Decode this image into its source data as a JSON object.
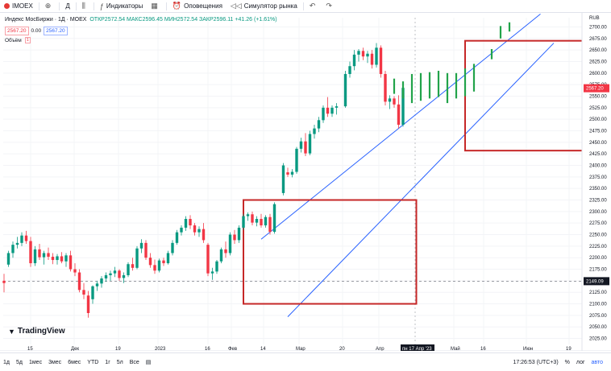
{
  "toolbar": {
    "symbol": "IMOEX",
    "add_icon": "plus-circle-icon",
    "interval": "Д",
    "chart_type_icon": "candles-icon",
    "indicators_label": "Индикаторы",
    "alerts_label": "Оповещения",
    "replay_label": "Симулятор рынка",
    "undo_icon": "undo-icon",
    "redo_icon": "redo-icon"
  },
  "legend": {
    "title": "Индекс МосБиржи · 1Д · MOEX",
    "ohlc_text": "ОТКР2572.54 МАКС2596.45 МИН2572.54 ЗАКР2596.11 +41.26 (+1.61%)",
    "bid": "2567.20",
    "spread": "0.00",
    "ask": "2567.20",
    "volume_label": "Объём",
    "volume_badge": "1"
  },
  "currency": "RUB",
  "price_ticks": [
    "2700.00",
    "2675.00",
    "2650.00",
    "2625.00",
    "2600.00",
    "2575.00",
    "2550.00",
    "2525.00",
    "2500.00",
    "2475.00",
    "2450.00",
    "2425.00",
    "2400.00",
    "2375.00",
    "2350.00",
    "2325.00",
    "2300.00",
    "2275.00",
    "2250.00",
    "2225.00",
    "2200.00",
    "2175.00",
    "2150.00",
    "2125.00",
    "2100.00",
    "2075.00",
    "2050.00",
    "2025.00"
  ],
  "last_price_tag": "2567.20",
  "hline_tag": "2149.09",
  "time_ticks": [
    "15",
    "Дек",
    "19",
    "2023",
    "16",
    "Фев",
    "14",
    "Мар",
    "20",
    "Апр",
    "пн 17 Апр '23",
    "Май",
    "16",
    "Июн",
    "19"
  ],
  "tv_logo": "TradingView",
  "bottom": {
    "ranges": [
      "1д",
      "5д",
      "1мес",
      "3мес",
      "6мес",
      "YTD",
      "1г",
      "5л",
      "Все"
    ],
    "time": "17:26:53 (UTC+3)",
    "percent": "%",
    "log": "лог",
    "auto": "авто"
  },
  "colors": {
    "up": "#089981",
    "down": "#f23645",
    "projection": "#22a34a",
    "channel": "#2962ff",
    "box": "#c62828"
  },
  "chart_data": {
    "type": "candlestick",
    "ylim": [
      2012,
      2720
    ],
    "candles": [
      {
        "i": 0,
        "o": 2150,
        "h": 2165,
        "l": 2125,
        "c": 2145
      },
      {
        "i": 1,
        "o": 2185,
        "h": 2215,
        "l": 2180,
        "c": 2210
      },
      {
        "i": 2,
        "o": 2210,
        "h": 2235,
        "l": 2200,
        "c": 2228
      },
      {
        "i": 3,
        "o": 2228,
        "h": 2245,
        "l": 2220,
        "c": 2232
      },
      {
        "i": 4,
        "o": 2232,
        "h": 2255,
        "l": 2225,
        "c": 2248
      },
      {
        "i": 5,
        "o": 2248,
        "h": 2258,
        "l": 2230,
        "c": 2236
      },
      {
        "i": 6,
        "o": 2236,
        "h": 2245,
        "l": 2180,
        "c": 2188
      },
      {
        "i": 7,
        "o": 2188,
        "h": 2225,
        "l": 2182,
        "c": 2218
      },
      {
        "i": 8,
        "o": 2218,
        "h": 2230,
        "l": 2195,
        "c": 2201
      },
      {
        "i": 9,
        "o": 2201,
        "h": 2215,
        "l": 2185,
        "c": 2210
      },
      {
        "i": 10,
        "o": 2210,
        "h": 2222,
        "l": 2195,
        "c": 2202
      },
      {
        "i": 11,
        "o": 2202,
        "h": 2210,
        "l": 2186,
        "c": 2195
      },
      {
        "i": 12,
        "o": 2195,
        "h": 2208,
        "l": 2185,
        "c": 2203
      },
      {
        "i": 13,
        "o": 2203,
        "h": 2212,
        "l": 2188,
        "c": 2192
      },
      {
        "i": 14,
        "o": 2192,
        "h": 2210,
        "l": 2180,
        "c": 2205
      },
      {
        "i": 15,
        "o": 2205,
        "h": 2215,
        "l": 2170,
        "c": 2175
      },
      {
        "i": 16,
        "o": 2175,
        "h": 2188,
        "l": 2160,
        "c": 2168
      },
      {
        "i": 17,
        "o": 2168,
        "h": 2175,
        "l": 2125,
        "c": 2130
      },
      {
        "i": 18,
        "o": 2130,
        "h": 2145,
        "l": 2110,
        "c": 2120
      },
      {
        "i": 19,
        "o": 2118,
        "h": 2128,
        "l": 2070,
        "c": 2080
      },
      {
        "i": 20,
        "o": 2110,
        "h": 2140,
        "l": 2100,
        "c": 2138
      },
      {
        "i": 21,
        "o": 2138,
        "h": 2150,
        "l": 2128,
        "c": 2144
      },
      {
        "i": 22,
        "o": 2144,
        "h": 2160,
        "l": 2135,
        "c": 2155
      },
      {
        "i": 23,
        "o": 2155,
        "h": 2168,
        "l": 2148,
        "c": 2162
      },
      {
        "i": 24,
        "o": 2162,
        "h": 2172,
        "l": 2150,
        "c": 2166
      },
      {
        "i": 25,
        "o": 2166,
        "h": 2180,
        "l": 2158,
        "c": 2172
      },
      {
        "i": 26,
        "o": 2172,
        "h": 2175,
        "l": 2150,
        "c": 2156
      },
      {
        "i": 27,
        "o": 2156,
        "h": 2168,
        "l": 2145,
        "c": 2162
      },
      {
        "i": 28,
        "o": 2162,
        "h": 2190,
        "l": 2158,
        "c": 2186
      },
      {
        "i": 29,
        "o": 2186,
        "h": 2200,
        "l": 2172,
        "c": 2178
      },
      {
        "i": 30,
        "o": 2178,
        "h": 2225,
        "l": 2175,
        "c": 2220
      },
      {
        "i": 31,
        "o": 2220,
        "h": 2240,
        "l": 2210,
        "c": 2232
      },
      {
        "i": 32,
        "o": 2232,
        "h": 2238,
        "l": 2195,
        "c": 2200
      },
      {
        "i": 33,
        "o": 2200,
        "h": 2210,
        "l": 2178,
        "c": 2184
      },
      {
        "i": 34,
        "o": 2184,
        "h": 2196,
        "l": 2165,
        "c": 2172
      },
      {
        "i": 35,
        "o": 2172,
        "h": 2198,
        "l": 2168,
        "c": 2194
      },
      {
        "i": 36,
        "o": 2194,
        "h": 2200,
        "l": 2182,
        "c": 2188
      },
      {
        "i": 37,
        "o": 2188,
        "h": 2215,
        "l": 2185,
        "c": 2210
      },
      {
        "i": 38,
        "o": 2210,
        "h": 2238,
        "l": 2205,
        "c": 2232
      },
      {
        "i": 39,
        "o": 2232,
        "h": 2260,
        "l": 2228,
        "c": 2255
      },
      {
        "i": 40,
        "o": 2255,
        "h": 2270,
        "l": 2248,
        "c": 2265
      },
      {
        "i": 41,
        "o": 2265,
        "h": 2290,
        "l": 2258,
        "c": 2284
      },
      {
        "i": 42,
        "o": 2284,
        "h": 2292,
        "l": 2262,
        "c": 2270
      },
      {
        "i": 43,
        "o": 2270,
        "h": 2275,
        "l": 2248,
        "c": 2255
      },
      {
        "i": 44,
        "o": 2255,
        "h": 2268,
        "l": 2245,
        "c": 2262
      },
      {
        "i": 45,
        "o": 2262,
        "h": 2275,
        "l": 2232,
        "c": 2238
      },
      {
        "i": 46,
        "o": 2228,
        "h": 2232,
        "l": 2160,
        "c": 2166
      },
      {
        "i": 47,
        "o": 2166,
        "h": 2178,
        "l": 2152,
        "c": 2170
      },
      {
        "i": 48,
        "o": 2170,
        "h": 2195,
        "l": 2165,
        "c": 2192
      },
      {
        "i": 49,
        "o": 2192,
        "h": 2222,
        "l": 2188,
        "c": 2218
      },
      {
        "i": 50,
        "o": 2218,
        "h": 2235,
        "l": 2200,
        "c": 2210
      },
      {
        "i": 51,
        "o": 2210,
        "h": 2255,
        "l": 2205,
        "c": 2250
      },
      {
        "i": 52,
        "o": 2250,
        "h": 2260,
        "l": 2230,
        "c": 2238
      },
      {
        "i": 53,
        "o": 2238,
        "h": 2270,
        "l": 2232,
        "c": 2265
      },
      {
        "i": 54,
        "o": 2265,
        "h": 2295,
        "l": 2260,
        "c": 2290
      },
      {
        "i": 55,
        "o": 2290,
        "h": 2298,
        "l": 2280,
        "c": 2294
      },
      {
        "i": 56,
        "o": 2294,
        "h": 2300,
        "l": 2270,
        "c": 2276
      },
      {
        "i": 57,
        "o": 2276,
        "h": 2290,
        "l": 2268,
        "c": 2284
      },
      {
        "i": 58,
        "o": 2284,
        "h": 2295,
        "l": 2265,
        "c": 2270
      },
      {
        "i": 59,
        "o": 2270,
        "h": 2292,
        "l": 2265,
        "c": 2288
      },
      {
        "i": 60,
        "o": 2288,
        "h": 2295,
        "l": 2250,
        "c": 2256
      },
      {
        "i": 61,
        "o": 2256,
        "h": 2320,
        "l": 2252,
        "c": 2316
      },
      {
        "i": 62,
        "o": 2340,
        "h": 2405,
        "l": 2335,
        "c": 2400
      },
      {
        "i": 63,
        "o": 2385,
        "h": 2395,
        "l": 2375,
        "c": 2380
      },
      {
        "i": 64,
        "o": 2380,
        "h": 2392,
        "l": 2374,
        "c": 2386
      },
      {
        "i": 65,
        "o": 2386,
        "h": 2440,
        "l": 2382,
        "c": 2436
      },
      {
        "i": 66,
        "o": 2436,
        "h": 2460,
        "l": 2428,
        "c": 2452
      },
      {
        "i": 67,
        "o": 2452,
        "h": 2470,
        "l": 2420,
        "c": 2426
      },
      {
        "i": 68,
        "o": 2426,
        "h": 2475,
        "l": 2422,
        "c": 2468
      },
      {
        "i": 69,
        "o": 2468,
        "h": 2488,
        "l": 2458,
        "c": 2480
      },
      {
        "i": 70,
        "o": 2480,
        "h": 2505,
        "l": 2472,
        "c": 2498
      },
      {
        "i": 71,
        "o": 2498,
        "h": 2530,
        "l": 2492,
        "c": 2525
      },
      {
        "i": 72,
        "o": 2525,
        "h": 2548,
        "l": 2505,
        "c": 2512
      },
      {
        "i": 73,
        "o": 2512,
        "h": 2530,
        "l": 2505,
        "c": 2525
      },
      {
        "i": 74,
        "o": 2525,
        "h": 2535,
        "l": 2510,
        "c": 2528
      },
      {
        "i": 75,
        "o": 2528,
        "h": 2605,
        "l": 2525,
        "c": 2598
      },
      {
        "i": 76,
        "o": 2598,
        "h": 2625,
        "l": 2590,
        "c": 2615
      },
      {
        "i": 77,
        "o": 2615,
        "h": 2650,
        "l": 2606,
        "c": 2640
      },
      {
        "i": 78,
        "o": 2640,
        "h": 2652,
        "l": 2625,
        "c": 2648
      },
      {
        "i": 79,
        "o": 2648,
        "h": 2655,
        "l": 2628,
        "c": 2636
      },
      {
        "i": 80,
        "o": 2636,
        "h": 2648,
        "l": 2622,
        "c": 2642
      },
      {
        "i": 81,
        "o": 2642,
        "h": 2650,
        "l": 2610,
        "c": 2618
      },
      {
        "i": 82,
        "o": 2618,
        "h": 2665,
        "l": 2612,
        "c": 2655
      },
      {
        "i": 83,
        "o": 2655,
        "h": 2660,
        "l": 2590,
        "c": 2598
      },
      {
        "i": 84,
        "o": 2598,
        "h": 2605,
        "l": 2530,
        "c": 2538
      },
      {
        "i": 85,
        "o": 2538,
        "h": 2552,
        "l": 2522,
        "c": 2545
      },
      {
        "i": 86,
        "o": 2545,
        "h": 2550,
        "l": 2525,
        "c": 2532
      },
      {
        "i": 87,
        "o": 2532,
        "h": 2552,
        "l": 2480,
        "c": 2488
      },
      {
        "i": 88,
        "o": 2488,
        "h": 2575,
        "l": 2484,
        "c": 2568
      }
    ],
    "projection": [
      {
        "i": 90,
        "l": 2555,
        "h": 2588
      },
      {
        "i": 92,
        "l": 2545,
        "h": 2582
      },
      {
        "i": 94,
        "l": 2535,
        "h": 2598
      },
      {
        "i": 96,
        "l": 2540,
        "h": 2600
      },
      {
        "i": 98,
        "l": 2545,
        "h": 2602
      },
      {
        "i": 100,
        "l": 2548,
        "h": 2605
      },
      {
        "i": 102,
        "l": 2535,
        "h": 2600
      },
      {
        "i": 104,
        "l": 2545,
        "h": 2600
      },
      {
        "i": 106,
        "l": 2550,
        "h": 2610
      },
      {
        "i": 108,
        "l": 2560,
        "h": 2620
      },
      {
        "i": 112,
        "l": 2630,
        "h": 2652
      },
      {
        "i": 114,
        "l": 2675,
        "h": 2702
      },
      {
        "i": 116,
        "l": 2690,
        "h": 2710
      }
    ],
    "hline": 2149.09,
    "channel_upper": {
      "x1i": 58,
      "y1": 2240,
      "x2i": 121,
      "y2": 2728
    },
    "channel_lower": {
      "x1i": 64,
      "y1": 2072,
      "x2i": 124,
      "y2": 2665
    },
    "boxes": [
      {
        "i1": 54,
        "i2": 93,
        "y1": 2325,
        "y2": 2100
      },
      {
        "i1": 104,
        "i2": 141,
        "y1": 2670,
        "y2": 2432
      }
    ]
  }
}
